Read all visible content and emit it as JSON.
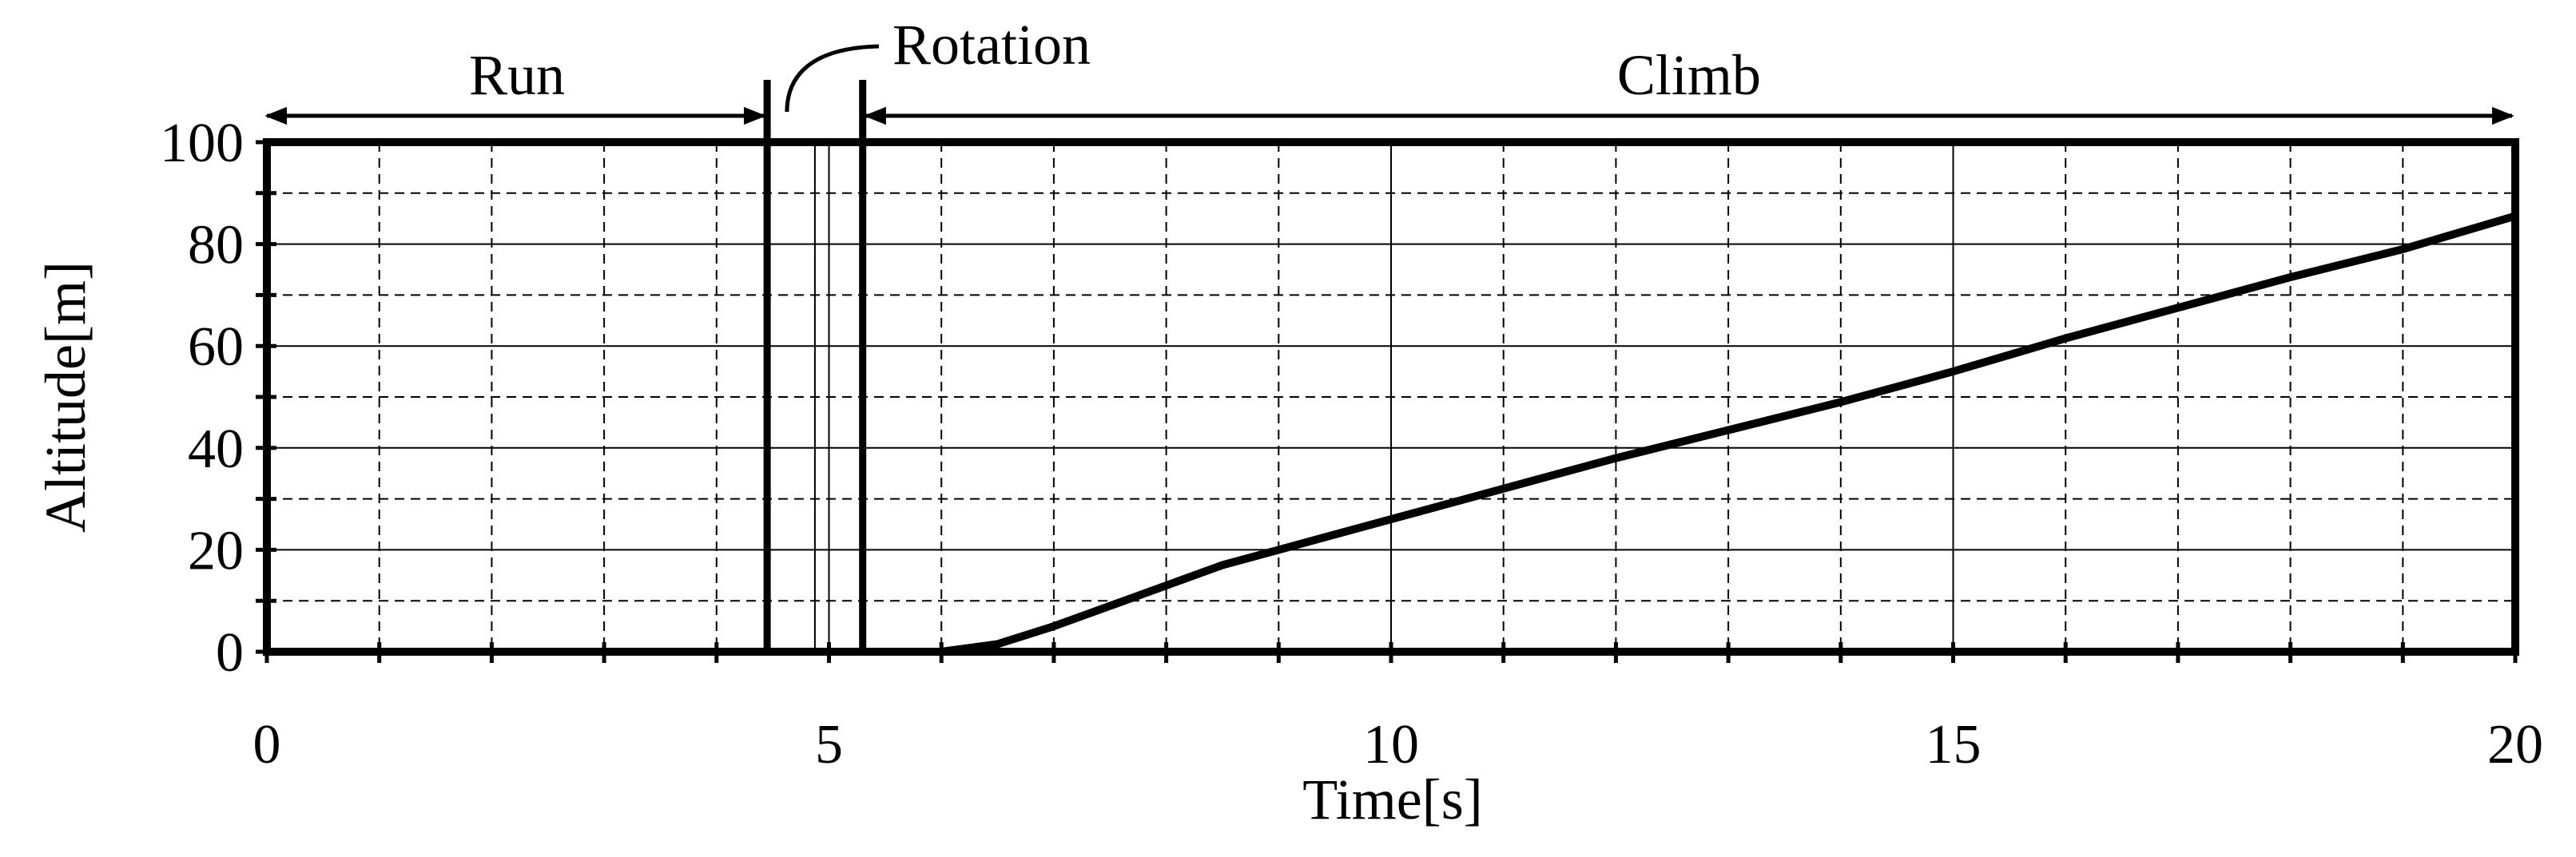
{
  "chart_data": {
    "type": "line",
    "title": "",
    "xlabel": "Time[s]",
    "ylabel": "Altitude[m]",
    "xlim": [
      0,
      20
    ],
    "ylim": [
      0,
      100
    ],
    "x_major_ticks": [
      0,
      5,
      10,
      15,
      20
    ],
    "x_tick_labels": [
      "0",
      "5",
      "10",
      "15",
      "20"
    ],
    "x_minor_step": 1,
    "y_major_ticks": [
      0,
      20,
      40,
      60,
      80,
      100
    ],
    "y_tick_labels": [
      "0",
      "20",
      "40",
      "60",
      "80",
      "100"
    ],
    "y_minor_step": 10,
    "grid": true,
    "series": [
      {
        "name": "Altitude",
        "color": "#000000",
        "x": [
          0,
          1,
          2,
          3,
          4,
          5,
          6.0,
          6.5,
          7.0,
          7.5,
          8.0,
          8.5,
          9.0,
          10.0,
          11.0,
          12.0,
          13.0,
          14.0,
          15.0,
          16.0,
          17.0,
          18.0,
          19.0,
          20.0
        ],
        "y": [
          0,
          0,
          0,
          0,
          0,
          0,
          0.0,
          1.5,
          5.0,
          9.0,
          13.0,
          17.0,
          20.0,
          26.0,
          32.0,
          38.0,
          43.5,
          49.0,
          55.0,
          61.5,
          67.5,
          73.5,
          79.0,
          85.5
        ]
      }
    ],
    "phase_boundaries": [
      4.45,
      5.3
    ],
    "phases": [
      {
        "label": "Run",
        "start": 0,
        "end": 4.45
      },
      {
        "label": "Rotation",
        "start": 4.45,
        "end": 5.3
      },
      {
        "label": "Climb",
        "start": 5.3,
        "end": 20
      }
    ]
  }
}
